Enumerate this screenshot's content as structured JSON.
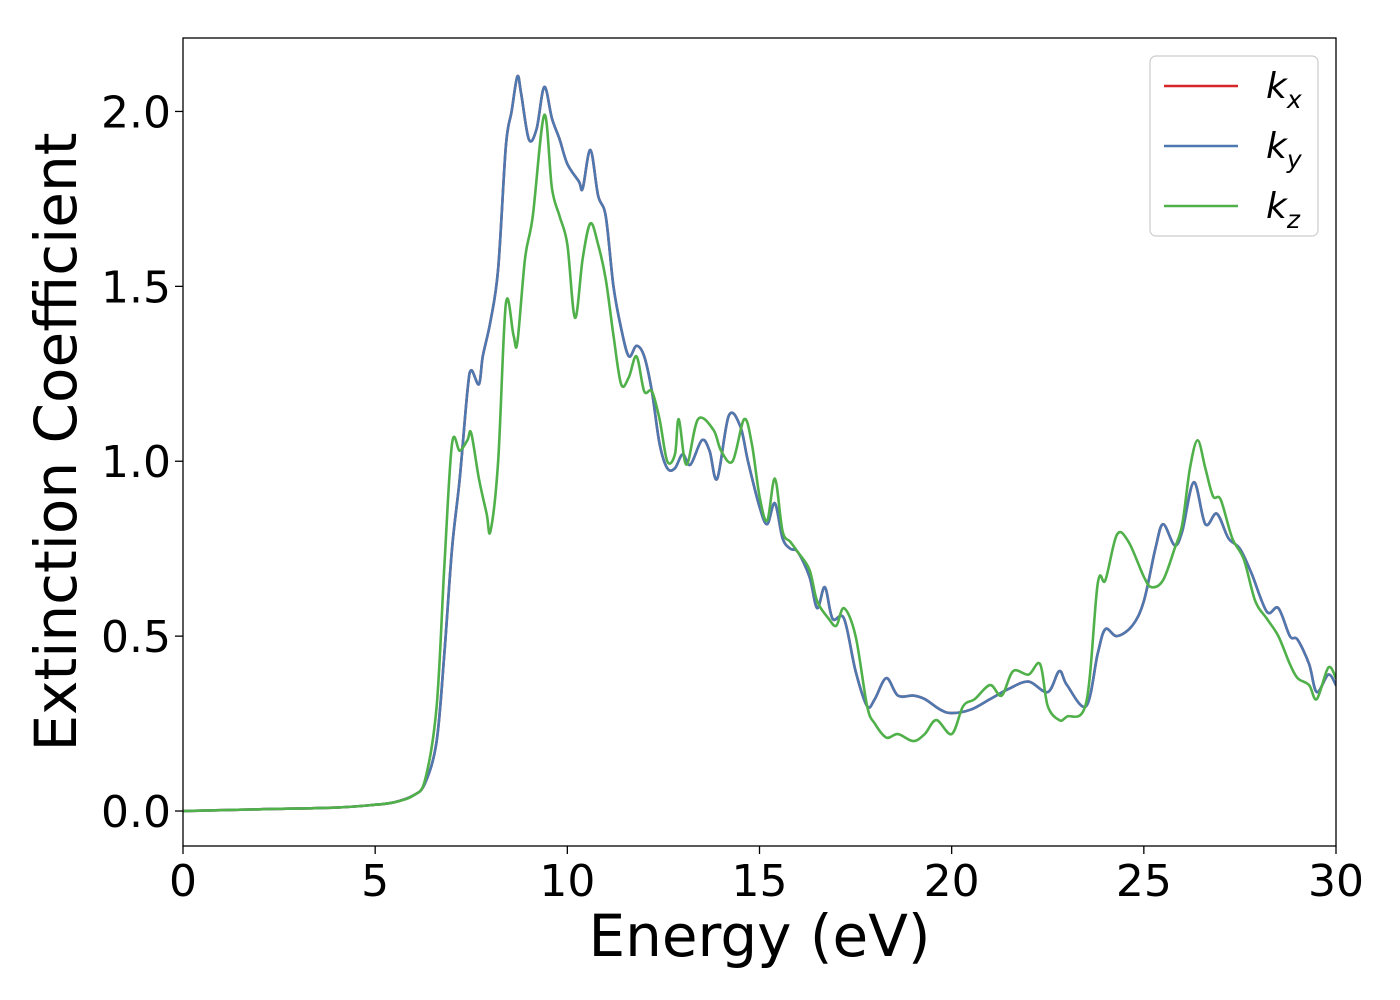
{
  "chart_data": {
    "type": "line",
    "xlabel": "Energy (eV)",
    "ylabel": "Extinction Coefficient",
    "xlim": [
      0,
      30
    ],
    "ylim": [
      -0.1,
      2.21
    ],
    "xticks": [
      0,
      5,
      10,
      15,
      20,
      25,
      30
    ],
    "xtick_labels": [
      "0",
      "5",
      "10",
      "15",
      "20",
      "25",
      "30"
    ],
    "yticks": [
      0.0,
      0.5,
      1.0,
      1.5,
      2.0
    ],
    "ytick_labels": [
      "0.0",
      "0.5",
      "1.0",
      "1.5",
      "2.0"
    ],
    "grid": false,
    "legend_position": "top-right",
    "series": [
      {
        "name": "k_x",
        "label_base": "k",
        "label_sub": "x",
        "color": "#d62728",
        "points": [
          [
            0,
            0
          ],
          [
            2,
            0.005
          ],
          [
            4,
            0.01
          ],
          [
            5,
            0.018
          ],
          [
            5.5,
            0.025
          ],
          [
            6,
            0.045
          ],
          [
            6.3,
            0.08
          ],
          [
            6.6,
            0.2
          ],
          [
            6.8,
            0.45
          ],
          [
            7.0,
            0.75
          ],
          [
            7.2,
            0.95
          ],
          [
            7.4,
            1.2
          ],
          [
            7.5,
            1.26
          ],
          [
            7.7,
            1.22
          ],
          [
            7.8,
            1.3
          ],
          [
            8.0,
            1.4
          ],
          [
            8.2,
            1.55
          ],
          [
            8.4,
            1.9
          ],
          [
            8.55,
            2.0
          ],
          [
            8.7,
            2.1
          ],
          [
            8.8,
            2.05
          ],
          [
            9.0,
            1.92
          ],
          [
            9.2,
            1.95
          ],
          [
            9.4,
            2.07
          ],
          [
            9.6,
            1.98
          ],
          [
            9.8,
            1.92
          ],
          [
            10.0,
            1.85
          ],
          [
            10.3,
            1.8
          ],
          [
            10.4,
            1.78
          ],
          [
            10.6,
            1.89
          ],
          [
            10.8,
            1.76
          ],
          [
            11.0,
            1.7
          ],
          [
            11.2,
            1.5
          ],
          [
            11.4,
            1.38
          ],
          [
            11.6,
            1.3
          ],
          [
            11.8,
            1.33
          ],
          [
            12.0,
            1.3
          ],
          [
            12.2,
            1.2
          ],
          [
            12.4,
            1.05
          ],
          [
            12.6,
            0.98
          ],
          [
            12.8,
            0.98
          ],
          [
            13.0,
            1.02
          ],
          [
            13.2,
            0.99
          ],
          [
            13.5,
            1.06
          ],
          [
            13.7,
            1.03
          ],
          [
            13.9,
            0.95
          ],
          [
            14.2,
            1.13
          ],
          [
            14.5,
            1.1
          ],
          [
            14.7,
            1.0
          ],
          [
            15.0,
            0.87
          ],
          [
            15.2,
            0.82
          ],
          [
            15.4,
            0.88
          ],
          [
            15.6,
            0.78
          ],
          [
            15.8,
            0.75
          ],
          [
            16.0,
            0.74
          ],
          [
            16.3,
            0.67
          ],
          [
            16.5,
            0.58
          ],
          [
            16.7,
            0.64
          ],
          [
            16.9,
            0.55
          ],
          [
            17.2,
            0.55
          ],
          [
            17.5,
            0.4
          ],
          [
            17.8,
            0.3
          ],
          [
            18.0,
            0.32
          ],
          [
            18.3,
            0.38
          ],
          [
            18.6,
            0.33
          ],
          [
            19.0,
            0.33
          ],
          [
            19.3,
            0.32
          ],
          [
            19.7,
            0.29
          ],
          [
            20.0,
            0.28
          ],
          [
            20.5,
            0.29
          ],
          [
            21.0,
            0.32
          ],
          [
            21.5,
            0.35
          ],
          [
            22.0,
            0.37
          ],
          [
            22.5,
            0.34
          ],
          [
            22.8,
            0.4
          ],
          [
            23.0,
            0.36
          ],
          [
            23.5,
            0.3
          ],
          [
            23.8,
            0.45
          ],
          [
            24.0,
            0.52
          ],
          [
            24.3,
            0.5
          ],
          [
            24.7,
            0.53
          ],
          [
            25.0,
            0.6
          ],
          [
            25.3,
            0.75
          ],
          [
            25.5,
            0.82
          ],
          [
            25.8,
            0.76
          ],
          [
            26.0,
            0.8
          ],
          [
            26.3,
            0.94
          ],
          [
            26.6,
            0.82
          ],
          [
            26.9,
            0.85
          ],
          [
            27.2,
            0.78
          ],
          [
            27.5,
            0.75
          ],
          [
            27.8,
            0.68
          ],
          [
            28.2,
            0.57
          ],
          [
            28.5,
            0.58
          ],
          [
            28.8,
            0.5
          ],
          [
            29.0,
            0.49
          ],
          [
            29.3,
            0.42
          ],
          [
            29.5,
            0.34
          ],
          [
            29.8,
            0.39
          ],
          [
            30.0,
            0.36
          ]
        ]
      },
      {
        "name": "k_y",
        "label_base": "k",
        "label_sub": "y",
        "color": "#4e79b0",
        "points": [
          [
            0,
            0
          ],
          [
            2,
            0.005
          ],
          [
            4,
            0.01
          ],
          [
            5,
            0.018
          ],
          [
            5.5,
            0.025
          ],
          [
            6,
            0.045
          ],
          [
            6.3,
            0.08
          ],
          [
            6.6,
            0.2
          ],
          [
            6.8,
            0.45
          ],
          [
            7.0,
            0.75
          ],
          [
            7.2,
            0.95
          ],
          [
            7.4,
            1.2
          ],
          [
            7.5,
            1.26
          ],
          [
            7.7,
            1.22
          ],
          [
            7.8,
            1.3
          ],
          [
            8.0,
            1.4
          ],
          [
            8.2,
            1.55
          ],
          [
            8.4,
            1.9
          ],
          [
            8.55,
            2.0
          ],
          [
            8.7,
            2.1
          ],
          [
            8.8,
            2.05
          ],
          [
            9.0,
            1.92
          ],
          [
            9.2,
            1.95
          ],
          [
            9.4,
            2.07
          ],
          [
            9.6,
            1.98
          ],
          [
            9.8,
            1.92
          ],
          [
            10.0,
            1.85
          ],
          [
            10.3,
            1.8
          ],
          [
            10.4,
            1.78
          ],
          [
            10.6,
            1.89
          ],
          [
            10.8,
            1.76
          ],
          [
            11.0,
            1.7
          ],
          [
            11.2,
            1.5
          ],
          [
            11.4,
            1.38
          ],
          [
            11.6,
            1.3
          ],
          [
            11.8,
            1.33
          ],
          [
            12.0,
            1.3
          ],
          [
            12.2,
            1.2
          ],
          [
            12.4,
            1.05
          ],
          [
            12.6,
            0.98
          ],
          [
            12.8,
            0.98
          ],
          [
            13.0,
            1.02
          ],
          [
            13.2,
            0.99
          ],
          [
            13.5,
            1.06
          ],
          [
            13.7,
            1.03
          ],
          [
            13.9,
            0.95
          ],
          [
            14.2,
            1.13
          ],
          [
            14.5,
            1.1
          ],
          [
            14.7,
            1.0
          ],
          [
            15.0,
            0.87
          ],
          [
            15.2,
            0.82
          ],
          [
            15.4,
            0.88
          ],
          [
            15.6,
            0.78
          ],
          [
            15.8,
            0.75
          ],
          [
            16.0,
            0.74
          ],
          [
            16.3,
            0.67
          ],
          [
            16.5,
            0.58
          ],
          [
            16.7,
            0.64
          ],
          [
            16.9,
            0.55
          ],
          [
            17.2,
            0.55
          ],
          [
            17.5,
            0.4
          ],
          [
            17.8,
            0.3
          ],
          [
            18.0,
            0.32
          ],
          [
            18.3,
            0.38
          ],
          [
            18.6,
            0.33
          ],
          [
            19.0,
            0.33
          ],
          [
            19.3,
            0.32
          ],
          [
            19.7,
            0.29
          ],
          [
            20.0,
            0.28
          ],
          [
            20.5,
            0.29
          ],
          [
            21.0,
            0.32
          ],
          [
            21.5,
            0.35
          ],
          [
            22.0,
            0.37
          ],
          [
            22.5,
            0.34
          ],
          [
            22.8,
            0.4
          ],
          [
            23.0,
            0.36
          ],
          [
            23.5,
            0.3
          ],
          [
            23.8,
            0.45
          ],
          [
            24.0,
            0.52
          ],
          [
            24.3,
            0.5
          ],
          [
            24.7,
            0.53
          ],
          [
            25.0,
            0.6
          ],
          [
            25.3,
            0.75
          ],
          [
            25.5,
            0.82
          ],
          [
            25.8,
            0.76
          ],
          [
            26.0,
            0.8
          ],
          [
            26.3,
            0.94
          ],
          [
            26.6,
            0.82
          ],
          [
            26.9,
            0.85
          ],
          [
            27.2,
            0.78
          ],
          [
            27.5,
            0.75
          ],
          [
            27.8,
            0.68
          ],
          [
            28.2,
            0.57
          ],
          [
            28.5,
            0.58
          ],
          [
            28.8,
            0.5
          ],
          [
            29.0,
            0.49
          ],
          [
            29.3,
            0.42
          ],
          [
            29.5,
            0.34
          ],
          [
            29.8,
            0.39
          ],
          [
            30.0,
            0.36
          ]
        ]
      },
      {
        "name": "k_z",
        "label_base": "k",
        "label_sub": "z",
        "color": "#50b04a",
        "points": [
          [
            0,
            0
          ],
          [
            2,
            0.005
          ],
          [
            4,
            0.01
          ],
          [
            5,
            0.018
          ],
          [
            5.5,
            0.025
          ],
          [
            6,
            0.045
          ],
          [
            6.3,
            0.09
          ],
          [
            6.6,
            0.3
          ],
          [
            6.8,
            0.7
          ],
          [
            7.0,
            1.05
          ],
          [
            7.2,
            1.03
          ],
          [
            7.4,
            1.06
          ],
          [
            7.5,
            1.08
          ],
          [
            7.7,
            0.95
          ],
          [
            7.9,
            0.85
          ],
          [
            8.0,
            0.8
          ],
          [
            8.2,
            1.0
          ],
          [
            8.4,
            1.45
          ],
          [
            8.6,
            1.36
          ],
          [
            8.7,
            1.34
          ],
          [
            8.9,
            1.58
          ],
          [
            9.1,
            1.7
          ],
          [
            9.4,
            1.99
          ],
          [
            9.6,
            1.78
          ],
          [
            9.8,
            1.7
          ],
          [
            10.0,
            1.62
          ],
          [
            10.2,
            1.41
          ],
          [
            10.4,
            1.58
          ],
          [
            10.6,
            1.68
          ],
          [
            10.8,
            1.62
          ],
          [
            11.0,
            1.52
          ],
          [
            11.2,
            1.36
          ],
          [
            11.4,
            1.22
          ],
          [
            11.6,
            1.24
          ],
          [
            11.8,
            1.3
          ],
          [
            12.0,
            1.2
          ],
          [
            12.2,
            1.2
          ],
          [
            12.4,
            1.12
          ],
          [
            12.6,
            1.0
          ],
          [
            12.8,
            1.02
          ],
          [
            12.9,
            1.12
          ],
          [
            13.1,
            0.99
          ],
          [
            13.4,
            1.12
          ],
          [
            13.8,
            1.09
          ],
          [
            14.0,
            1.03
          ],
          [
            14.3,
            1.0
          ],
          [
            14.6,
            1.12
          ],
          [
            14.8,
            1.05
          ],
          [
            15.0,
            0.9
          ],
          [
            15.2,
            0.83
          ],
          [
            15.4,
            0.95
          ],
          [
            15.6,
            0.8
          ],
          [
            15.8,
            0.77
          ],
          [
            16.0,
            0.74
          ],
          [
            16.3,
            0.69
          ],
          [
            16.5,
            0.6
          ],
          [
            16.8,
            0.55
          ],
          [
            17.0,
            0.53
          ],
          [
            17.2,
            0.58
          ],
          [
            17.5,
            0.5
          ],
          [
            17.8,
            0.3
          ],
          [
            18.0,
            0.25
          ],
          [
            18.3,
            0.21
          ],
          [
            18.6,
            0.22
          ],
          [
            19.0,
            0.2
          ],
          [
            19.3,
            0.22
          ],
          [
            19.6,
            0.26
          ],
          [
            20.0,
            0.22
          ],
          [
            20.3,
            0.3
          ],
          [
            20.6,
            0.32
          ],
          [
            21.0,
            0.36
          ],
          [
            21.3,
            0.33
          ],
          [
            21.6,
            0.4
          ],
          [
            22.0,
            0.39
          ],
          [
            22.3,
            0.42
          ],
          [
            22.5,
            0.3
          ],
          [
            22.8,
            0.26
          ],
          [
            23.0,
            0.27
          ],
          [
            23.5,
            0.31
          ],
          [
            23.8,
            0.65
          ],
          [
            24.0,
            0.66
          ],
          [
            24.3,
            0.79
          ],
          [
            24.6,
            0.77
          ],
          [
            25.0,
            0.67
          ],
          [
            25.2,
            0.64
          ],
          [
            25.5,
            0.66
          ],
          [
            25.8,
            0.75
          ],
          [
            26.0,
            0.82
          ],
          [
            26.2,
            0.98
          ],
          [
            26.4,
            1.06
          ],
          [
            26.6,
            0.98
          ],
          [
            26.8,
            0.9
          ],
          [
            27.0,
            0.89
          ],
          [
            27.3,
            0.78
          ],
          [
            27.6,
            0.72
          ],
          [
            27.9,
            0.6
          ],
          [
            28.2,
            0.55
          ],
          [
            28.5,
            0.5
          ],
          [
            28.8,
            0.42
          ],
          [
            29.0,
            0.38
          ],
          [
            29.3,
            0.36
          ],
          [
            29.5,
            0.32
          ],
          [
            29.8,
            0.41
          ],
          [
            30.0,
            0.38
          ]
        ]
      }
    ]
  }
}
